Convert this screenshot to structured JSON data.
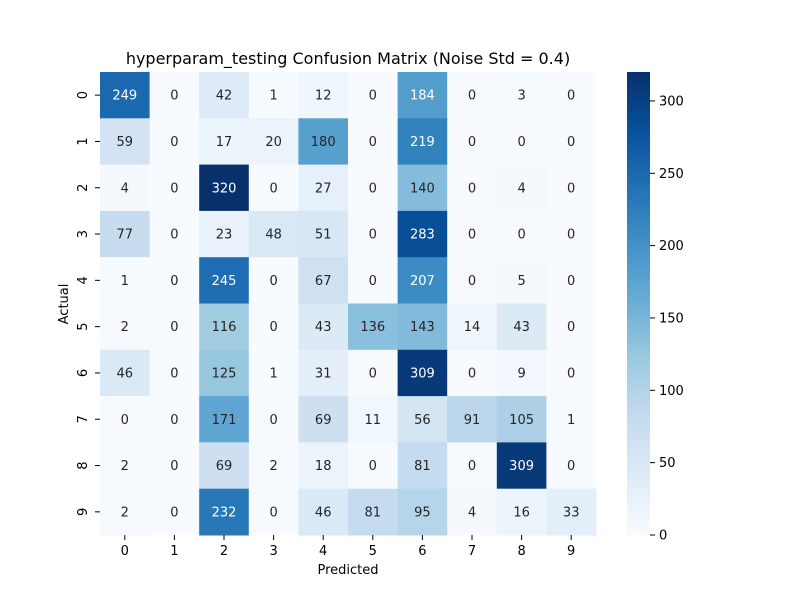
{
  "chart_data": {
    "type": "heatmap",
    "title": "hyperparam_testing Confusion Matrix (Noise Std = 0.4)",
    "xlabel": "Predicted",
    "ylabel": "Actual",
    "x_categories": [
      "0",
      "1",
      "2",
      "3",
      "4",
      "5",
      "6",
      "7",
      "8",
      "9"
    ],
    "y_categories": [
      "0",
      "1",
      "2",
      "3",
      "4",
      "5",
      "6",
      "7",
      "8",
      "9"
    ],
    "values": [
      [
        249,
        0,
        42,
        1,
        12,
        0,
        184,
        0,
        3,
        0
      ],
      [
        59,
        0,
        17,
        20,
        180,
        0,
        219,
        0,
        0,
        0
      ],
      [
        4,
        0,
        320,
        0,
        27,
        0,
        140,
        0,
        4,
        0
      ],
      [
        77,
        0,
        23,
        48,
        51,
        0,
        283,
        0,
        0,
        0
      ],
      [
        1,
        0,
        245,
        0,
        67,
        0,
        207,
        0,
        5,
        0
      ],
      [
        2,
        0,
        116,
        0,
        43,
        136,
        143,
        14,
        43,
        0
      ],
      [
        46,
        0,
        125,
        1,
        31,
        0,
        309,
        0,
        9,
        0
      ],
      [
        0,
        0,
        171,
        0,
        69,
        11,
        56,
        91,
        105,
        1
      ],
      [
        2,
        0,
        69,
        2,
        18,
        0,
        81,
        0,
        309,
        0
      ],
      [
        2,
        0,
        232,
        0,
        46,
        81,
        95,
        4,
        16,
        33
      ]
    ],
    "colormap": "Blues",
    "vmin": 0,
    "vmax": 320,
    "colorbar_ticks": [
      "0",
      "50",
      "100",
      "150",
      "200",
      "250",
      "300"
    ],
    "colorbar_tick_values": [
      0,
      50,
      100,
      150,
      200,
      250,
      300
    ]
  }
}
